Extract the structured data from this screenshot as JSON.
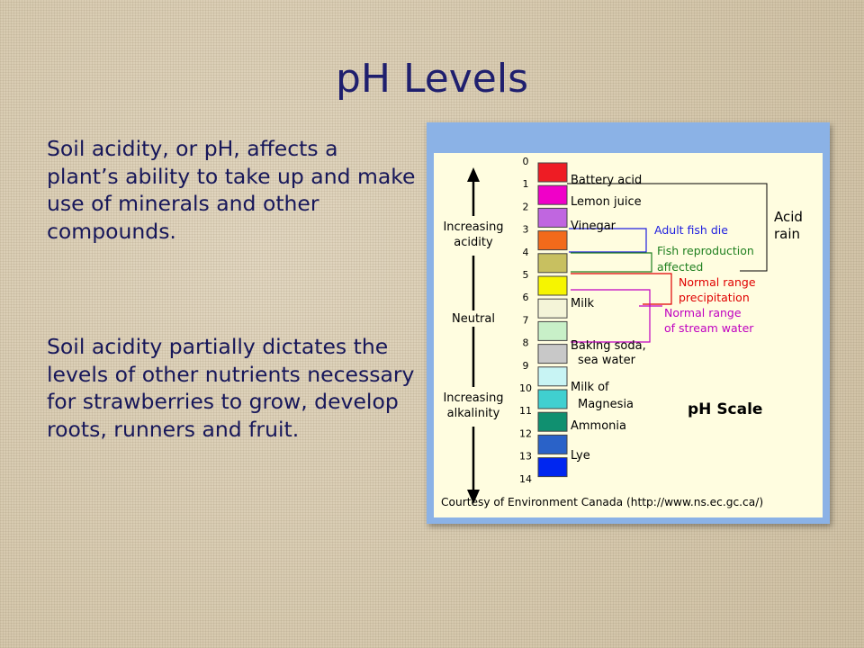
{
  "slide": {
    "title": "pH Levels",
    "paragraphs": [
      "Soil acidity, or pH, affects a plant’s ability to take up and make use of minerals and other compounds.",
      "Soil acidity partially dictates the levels of other nutrients necessary for strawberries to grow, develop roots, runners and fruit."
    ]
  },
  "ph_scale": {
    "numbers": [
      "0",
      "1",
      "2",
      "3",
      "4",
      "5",
      "6",
      "7",
      "8",
      "9",
      "10",
      "11",
      "12",
      "13",
      "14"
    ],
    "swatch_colors": [
      "#ee1c24",
      "#f000c8",
      "#c066e0",
      "#f26a1b",
      "#c8c060",
      "#f6f500",
      "#f4f4d8",
      "#c8f0c8",
      "#c8c8c8",
      "#c8f4f4",
      "#40d0d0",
      "#109070",
      "#2a62c8",
      "#0026f0"
    ],
    "substances": [
      {
        "label": "Battery acid"
      },
      {
        "label": "Lemon juice"
      },
      {
        "label": "Vinegar"
      },
      {
        "label": "Milk"
      },
      {
        "label": "Baking soda,"
      },
      {
        "label": "sea water"
      },
      {
        "label": "Milk of"
      },
      {
        "label": "Magnesia"
      },
      {
        "label": "Ammonia"
      },
      {
        "label": "Lye"
      }
    ],
    "axis_labels": [
      "Increasing",
      "acidity",
      "Neutral",
      "Increasing",
      "alkalinity"
    ],
    "annotations": {
      "acid_rain": [
        "Acid",
        "rain"
      ],
      "adult_fish_die": "Adult fish die",
      "fish_reproduction": [
        "Fish reproduction",
        "affected"
      ],
      "normal_precip": [
        "Normal range",
        "precipitation"
      ],
      "normal_stream": [
        "Normal range",
        "of stream water"
      ]
    },
    "scale_title": "pH Scale",
    "credit": "Courtesy of Environment Canada (http://www.ns.ec.gc.ca/)",
    "colors": {
      "blue_line": "#2020e0",
      "green_line": "#208020",
      "red_line": "#e00000",
      "magenta_line": "#c000c0",
      "black_line": "#000000"
    }
  }
}
